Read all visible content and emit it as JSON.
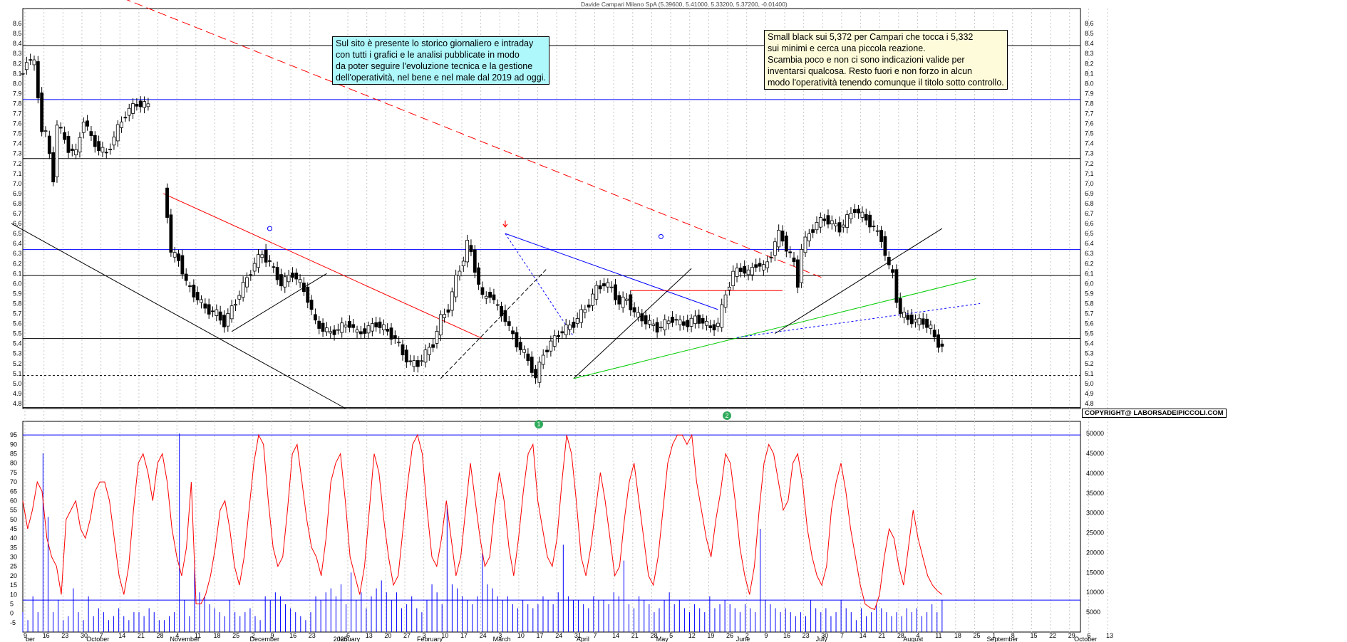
{
  "chart_title": "Davide Campari Milano SpA (5.39600, 5.41000, 5.33200, 5.37200, -0.01400)",
  "notes": {
    "left": [
      "Sul sito è presente lo storico giornaliero e intraday",
      "con tutti i grafici e le analisi pubblicate in modo",
      "da poter seguire l'evoluzione tecnica e la gestione",
      "dell'operatività, nel bene e nel male dal 2019 ad oggi."
    ],
    "right": [
      "Small black sui 5,372 per Campari che tocca i 5,332",
      "sui minimi e cerca una piccola reazione.",
      "Scambia poco e non ci sono indicazioni valide per",
      "inventarsi qualcosa. Resto fuori e non forzo in alcun",
      "modo l'operatività tenendo comunque il titolo sotto controllo."
    ]
  },
  "copyright": "COPYRIGHT@ LABORSADEIPICCOLI.COM",
  "markers": {
    "m1": "1",
    "m2": "2"
  },
  "colors": {
    "candle": "#000000",
    "support": "#0000ff",
    "oscillator": "#ff0000",
    "volume": "#0000ff",
    "trend_green": "#00cc00",
    "dashed_red": "#ff0000"
  },
  "chart_data": [
    {
      "type": "candlestick",
      "title": "Davide Campari Milano SpA (5.39600, 5.41000, 5.33200, 5.37200, -0.01400)",
      "ylim": [
        4.75,
        8.75
      ],
      "y_ticks": [
        4.8,
        4.9,
        5.0,
        5.1,
        5.2,
        5.3,
        5.4,
        5.5,
        5.6,
        5.7,
        5.8,
        5.9,
        6.0,
        6.1,
        6.2,
        6.3,
        6.4,
        6.5,
        6.6,
        6.7,
        6.8,
        6.9,
        7.0,
        7.1,
        7.2,
        7.3,
        7.4,
        7.5,
        7.6,
        7.7,
        7.8,
        7.9,
        8.0,
        8.1,
        8.2,
        8.3,
        8.4,
        8.5,
        8.6
      ],
      "x_labels": [
        {
          "label": "9",
          "day": 0
        },
        {
          "label": "16",
          "day": 5
        },
        {
          "label": "23",
          "day": 10
        },
        {
          "label": "30",
          "day": 15
        },
        {
          "label": "7",
          "day": 20
        },
        {
          "label": "14",
          "day": 25
        },
        {
          "label": "21",
          "day": 30
        },
        {
          "label": "28",
          "day": 35
        },
        {
          "label": "4",
          "day": 40
        },
        {
          "label": "11",
          "day": 45
        },
        {
          "label": "18",
          "day": 50
        },
        {
          "label": "25",
          "day": 55
        },
        {
          "label": "2",
          "day": 60
        },
        {
          "label": "9",
          "day": 65
        },
        {
          "label": "16",
          "day": 70
        },
        {
          "label": "23",
          "day": 75
        },
        {
          "label": "6",
          "day": 85
        },
        {
          "label": "13",
          "day": 90
        },
        {
          "label": "20",
          "day": 95
        },
        {
          "label": "27",
          "day": 100
        },
        {
          "label": "3",
          "day": 105
        },
        {
          "label": "10",
          "day": 110
        },
        {
          "label": "17",
          "day": 115
        },
        {
          "label": "24",
          "day": 120
        },
        {
          "label": "3",
          "day": 125
        },
        {
          "label": "10",
          "day": 130
        },
        {
          "label": "17",
          "day": 135
        },
        {
          "label": "24",
          "day": 140
        },
        {
          "label": "31",
          "day": 145
        },
        {
          "label": "7",
          "day": 150
        },
        {
          "label": "14",
          "day": 155
        },
        {
          "label": "21",
          "day": 160
        },
        {
          "label": "28",
          "day": 165
        },
        {
          "label": "5",
          "day": 170
        },
        {
          "label": "12",
          "day": 175
        },
        {
          "label": "19",
          "day": 180
        },
        {
          "label": "26",
          "day": 185
        },
        {
          "label": "2",
          "day": 190
        },
        {
          "label": "9",
          "day": 195
        },
        {
          "label": "16",
          "day": 200
        },
        {
          "label": "23",
          "day": 205
        },
        {
          "label": "30",
          "day": 210
        },
        {
          "label": "7",
          "day": 215
        },
        {
          "label": "14",
          "day": 220
        },
        {
          "label": "21",
          "day": 225
        },
        {
          "label": "28",
          "day": 230
        },
        {
          "label": "4",
          "day": 235
        },
        {
          "label": "11",
          "day": 240
        },
        {
          "label": "18",
          "day": 245
        },
        {
          "label": "25",
          "day": 250
        },
        {
          "label": "1",
          "day": 255
        },
        {
          "label": "8",
          "day": 260
        },
        {
          "label": "15",
          "day": 265
        },
        {
          "label": "22",
          "day": 270
        },
        {
          "label": "29",
          "day": 275
        },
        {
          "label": "6",
          "day": 280
        },
        {
          "label": "13",
          "day": 285
        }
      ],
      "month_labels": [
        {
          "label": "ber",
          "day": 0
        },
        {
          "label": "October",
          "day": 16
        },
        {
          "label": "November",
          "day": 38
        },
        {
          "label": "December",
          "day": 59
        },
        {
          "label": "2025",
          "day": 81
        },
        {
          "label": "January",
          "day": 82
        },
        {
          "label": "February",
          "day": 103
        },
        {
          "label": "March",
          "day": 123
        },
        {
          "label": "April",
          "day": 145
        },
        {
          "label": "May",
          "day": 166
        },
        {
          "label": "June",
          "day": 187
        },
        {
          "label": "July",
          "day": 208
        },
        {
          "label": "August",
          "day": 231
        },
        {
          "label": "September",
          "day": 253
        },
        {
          "label": "October",
          "day": 276
        }
      ],
      "price_anchors": [
        [
          0,
          8.1
        ],
        [
          1,
          8.25
        ],
        [
          3,
          8.2
        ],
        [
          5,
          7.55
        ],
        [
          6,
          7.5
        ],
        [
          8,
          7.05
        ],
        [
          9,
          7.6
        ],
        [
          12,
          7.35
        ],
        [
          14,
          7.3
        ],
        [
          16,
          7.65
        ],
        [
          18,
          7.45
        ],
        [
          20,
          7.35
        ],
        [
          22,
          7.3
        ],
        [
          25,
          7.55
        ],
        [
          27,
          7.7
        ],
        [
          30,
          7.8
        ],
        [
          33,
          7.78
        ],
        [
          38,
          6.7
        ],
        [
          39,
          6.3
        ],
        [
          41,
          6.25
        ],
        [
          43,
          6.0
        ],
        [
          45,
          5.9
        ],
        [
          48,
          5.75
        ],
        [
          51,
          5.7
        ],
        [
          53,
          5.6
        ],
        [
          55,
          5.75
        ],
        [
          57,
          5.9
        ],
        [
          59,
          6.05
        ],
        [
          61,
          6.2
        ],
        [
          63,
          6.3
        ],
        [
          65,
          6.2
        ],
        [
          68,
          6.0
        ],
        [
          71,
          6.1
        ],
        [
          73,
          6.0
        ],
        [
          75,
          5.85
        ],
        [
          77,
          5.6
        ],
        [
          79,
          5.55
        ],
        [
          81,
          5.5
        ],
        [
          83,
          5.55
        ],
        [
          86,
          5.6
        ],
        [
          88,
          5.5
        ],
        [
          91,
          5.55
        ],
        [
          93,
          5.6
        ],
        [
          95,
          5.55
        ],
        [
          98,
          5.45
        ],
        [
          100,
          5.3
        ],
        [
          102,
          5.2
        ],
        [
          104,
          5.2
        ],
        [
          106,
          5.3
        ],
        [
          108,
          5.4
        ],
        [
          110,
          5.65
        ],
        [
          112,
          5.75
        ],
        [
          114,
          6.05
        ],
        [
          116,
          6.25
        ],
        [
          117,
          6.4
        ],
        [
          118,
          6.3
        ],
        [
          120,
          6.0
        ],
        [
          121,
          5.85
        ],
        [
          123,
          5.9
        ],
        [
          125,
          5.75
        ],
        [
          127,
          5.65
        ],
        [
          128,
          5.55
        ],
        [
          130,
          5.4
        ],
        [
          132,
          5.3
        ],
        [
          134,
          5.15
        ],
        [
          135,
          5.05
        ],
        [
          137,
          5.3
        ],
        [
          139,
          5.4
        ],
        [
          141,
          5.5
        ],
        [
          143,
          5.55
        ],
        [
          145,
          5.6
        ],
        [
          147,
          5.7
        ],
        [
          149,
          5.8
        ],
        [
          151,
          5.95
        ],
        [
          153,
          6.0
        ],
        [
          155,
          5.95
        ],
        [
          157,
          5.8
        ],
        [
          159,
          5.85
        ],
        [
          161,
          5.7
        ],
        [
          163,
          5.65
        ],
        [
          165,
          5.6
        ],
        [
          167,
          5.55
        ],
        [
          169,
          5.6
        ],
        [
          171,
          5.65
        ],
        [
          173,
          5.6
        ],
        [
          175,
          5.6
        ],
        [
          177,
          5.65
        ],
        [
          179,
          5.62
        ],
        [
          181,
          5.55
        ],
        [
          183,
          5.6
        ],
        [
          185,
          5.9
        ],
        [
          187,
          6.1
        ],
        [
          189,
          6.15
        ],
        [
          191,
          6.1
        ],
        [
          193,
          6.2
        ],
        [
          195,
          6.15
        ],
        [
          197,
          6.3
        ],
        [
          199,
          6.5
        ],
        [
          200,
          6.45
        ],
        [
          201,
          6.35
        ],
        [
          203,
          6.2
        ],
        [
          204,
          6.0
        ],
        [
          205,
          6.35
        ],
        [
          207,
          6.5
        ],
        [
          209,
          6.6
        ],
        [
          211,
          6.65
        ],
        [
          213,
          6.6
        ],
        [
          215,
          6.55
        ],
        [
          217,
          6.65
        ],
        [
          219,
          6.75
        ],
        [
          220,
          6.7
        ],
        [
          222,
          6.65
        ],
        [
          224,
          6.55
        ],
        [
          226,
          6.45
        ],
        [
          227,
          6.3
        ],
        [
          228,
          6.15
        ],
        [
          229,
          6.1
        ],
        [
          230,
          5.85
        ],
        [
          231,
          5.7
        ],
        [
          233,
          5.65
        ],
        [
          235,
          5.62
        ],
        [
          237,
          5.62
        ],
        [
          239,
          5.55
        ],
        [
          240,
          5.45
        ],
        [
          241,
          5.4
        ],
        [
          242,
          5.37
        ]
      ],
      "last_candle": {
        "open": 5.396,
        "high": 5.41,
        "low": 5.332,
        "close": 5.372
      },
      "horizontal_lines": [
        {
          "value": 8.38,
          "color": "#000000"
        },
        {
          "value": 7.84,
          "color": "#0000ff"
        },
        {
          "value": 7.25,
          "color": "#000000"
        },
        {
          "value": 6.34,
          "color": "#0000ff"
        },
        {
          "value": 6.08,
          "color": "#000000"
        },
        {
          "value": 5.45,
          "color": "#000000"
        },
        {
          "value": 5.08,
          "color": "#000000",
          "dashed": true
        },
        {
          "value": 4.76,
          "color": "#000000"
        }
      ]
    },
    {
      "type": "line",
      "name": "oscillator",
      "ylim": [
        -10,
        100
      ],
      "y_ticks": [
        -5,
        0,
        5,
        10,
        15,
        20,
        25,
        30,
        35,
        40,
        45,
        50,
        55,
        60,
        65,
        70,
        75,
        80,
        85,
        90,
        95
      ],
      "reference_lines": [
        95,
        7
      ],
      "values": [
        60,
        45,
        55,
        70,
        65,
        40,
        30,
        25,
        10,
        50,
        55,
        60,
        45,
        40,
        50,
        65,
        70,
        70,
        60,
        40,
        20,
        10,
        25,
        55,
        80,
        85,
        75,
        60,
        80,
        85,
        70,
        45,
        30,
        20,
        35,
        70,
        5,
        5,
        10,
        20,
        35,
        55,
        60,
        45,
        25,
        15,
        30,
        55,
        80,
        95,
        90,
        60,
        35,
        25,
        30,
        55,
        85,
        90,
        70,
        50,
        35,
        30,
        20,
        40,
        70,
        80,
        85,
        60,
        30,
        20,
        10,
        25,
        55,
        85,
        75,
        50,
        30,
        15,
        20,
        45,
        70,
        90,
        95,
        85,
        55,
        30,
        25,
        40,
        60,
        40,
        20,
        30,
        55,
        80,
        60,
        40,
        25,
        30,
        55,
        75,
        60,
        35,
        20,
        40,
        65,
        85,
        90,
        60,
        45,
        30,
        25,
        40,
        70,
        95,
        85,
        60,
        30,
        20,
        35,
        55,
        75,
        60,
        40,
        20,
        25,
        50,
        70,
        80,
        60,
        40,
        20,
        15,
        30,
        55,
        80,
        90,
        95,
        95,
        90,
        95,
        70,
        55,
        40,
        30,
        50,
        65,
        85,
        80,
        60,
        35,
        20,
        10,
        25,
        55,
        80,
        90,
        85,
        70,
        55,
        60,
        80,
        85,
        70,
        45,
        30,
        20,
        15,
        25,
        55,
        70,
        80,
        65,
        45,
        30,
        15,
        5,
        3,
        2,
        10,
        30,
        45,
        40,
        25,
        15,
        35,
        55,
        40,
        30,
        20,
        15,
        12,
        10
      ]
    },
    {
      "type": "bar",
      "name": "volume",
      "ylim": [
        0,
        52000
      ],
      "y_ticks": [
        5000,
        10000,
        15000,
        20000,
        25000,
        30000,
        35000,
        40000,
        45000,
        50000
      ],
      "values": [
        5000,
        3000,
        9000,
        5000,
        45000,
        29000,
        5000,
        8000,
        3000,
        4000,
        11000,
        5000,
        3000,
        9000,
        4000,
        6000,
        5000,
        3000,
        4000,
        6000,
        4000,
        3000,
        5000,
        5000,
        4000,
        6000,
        5000,
        3000,
        3000,
        4000,
        5000,
        50000,
        8000,
        4000,
        18000,
        10000,
        9000,
        7000,
        6000,
        5000,
        4000,
        8000,
        5000,
        4000,
        5000,
        6000,
        4000,
        3000,
        9000,
        8000,
        10000,
        9000,
        7000,
        6000,
        5000,
        4000,
        3000,
        5000,
        9000,
        8000,
        10000,
        11000,
        9000,
        12000,
        7000,
        15000,
        8000,
        10000,
        6000,
        9000,
        11000,
        13000,
        10000,
        8000,
        10000,
        6000,
        7000,
        9000,
        6000,
        5000,
        8000,
        12000,
        10000,
        7000,
        32000,
        12000,
        11000,
        9000,
        8000,
        7000,
        9000,
        20000,
        12000,
        11000,
        9000,
        8000,
        9000,
        7000,
        6000,
        8000,
        7000,
        6000,
        7000,
        9000,
        8000,
        7000,
        10000,
        22000,
        9000,
        8000,
        8000,
        7000,
        6000,
        9000,
        8000,
        8000,
        7000,
        10000,
        9000,
        18000,
        7000,
        6000,
        9000,
        8000,
        7000,
        5000,
        6000,
        8000,
        10000,
        7000,
        8000,
        6000,
        5000,
        7000,
        6000,
        5000,
        9000,
        6000,
        7000,
        8000,
        7000,
        6000,
        5000,
        7000,
        6000,
        5000,
        26000,
        8000,
        7000,
        6000,
        5000,
        6000,
        5000,
        4000,
        5000,
        4000,
        8000,
        6000,
        5000,
        6000,
        4000,
        5000,
        8000,
        6000,
        5000,
        3000,
        6000,
        4000,
        5000,
        7000,
        6000,
        5000,
        4000,
        5000,
        4000,
        6000,
        5000,
        6000,
        4000,
        5000,
        7000,
        5000,
        8000
      ]
    }
  ]
}
